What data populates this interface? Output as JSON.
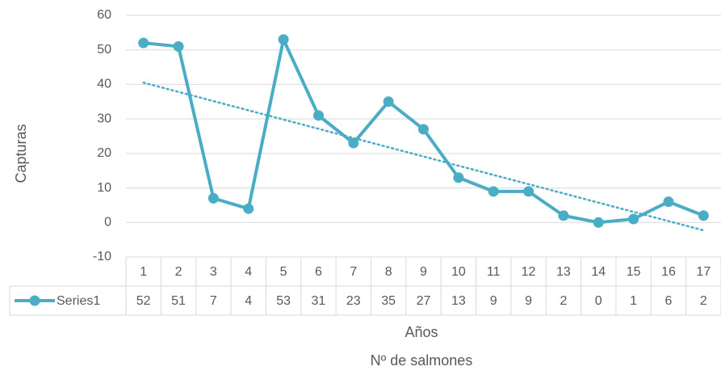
{
  "chart_data": {
    "type": "line",
    "title": "",
    "xlabel": "Años",
    "xlabel2": "Nº de salmones",
    "ylabel": "Capturas",
    "ylim": [
      -10,
      60
    ],
    "yticks": [
      -10,
      0,
      10,
      20,
      30,
      40,
      50,
      60
    ],
    "grid": true,
    "trendline": "linear",
    "categories": [
      "1",
      "2",
      "3",
      "4",
      "5",
      "6",
      "7",
      "8",
      "9",
      "10",
      "11",
      "12",
      "13",
      "14",
      "15",
      "16",
      "17"
    ],
    "series": [
      {
        "name": "Series1",
        "values": [
          52,
          51,
          7,
          4,
          53,
          31,
          23,
          35,
          27,
          13,
          9,
          9,
          2,
          0,
          1,
          6,
          2
        ]
      }
    ],
    "colors": {
      "series": "#4bacc6",
      "trend": "#4bacc6",
      "grid": "#d9d9d9",
      "text": "#595959"
    }
  }
}
